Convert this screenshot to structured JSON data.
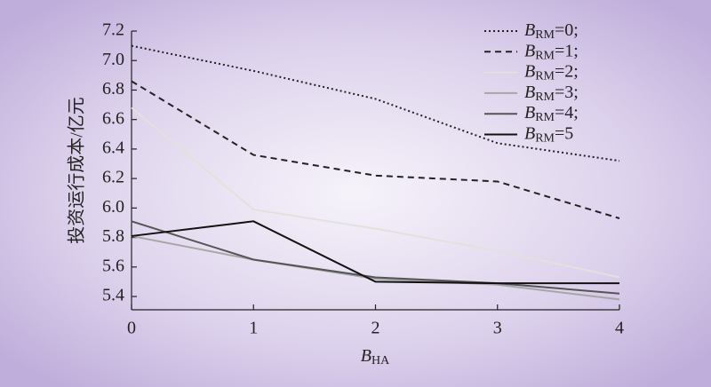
{
  "chart_data": {
    "type": "line",
    "x_label": "BHA",
    "y_label": "投资运行成本/亿元",
    "x": [
      0,
      1,
      2,
      3,
      4
    ],
    "xlim": [
      0,
      4
    ],
    "xticks": [
      0,
      1,
      2,
      3,
      4
    ],
    "ylim": [
      5.31,
      7.2
    ],
    "yticks": [
      5.4,
      5.6,
      5.8,
      {
        "value": 6,
        "label": "6.0"
      },
      6.2,
      6.4,
      6.6,
      6.8,
      {
        "value": 7,
        "label": "7.0"
      },
      7.2
    ],
    "legend": "upper right",
    "series": [
      {
        "name": "BRM=0;",
        "color": "#222222",
        "dash": "dotted",
        "values": [
          7.1,
          6.93,
          6.74,
          6.44,
          6.32
        ]
      },
      {
        "name": "BRM=1;",
        "color": "#222222",
        "dash": "dashed",
        "values": [
          6.86,
          6.36,
          6.22,
          6.18,
          5.93
        ]
      },
      {
        "name": "BRM=2;",
        "color": "#e4e1dc",
        "dash": "solid",
        "values": [
          6.68,
          5.99,
          5.86,
          5.71,
          5.53
        ]
      },
      {
        "name": "BRM=3;",
        "color": "#a6a6a6",
        "dash": "solid",
        "values": [
          5.81,
          5.65,
          5.52,
          5.48,
          5.38
        ]
      },
      {
        "name": "BRM=4;",
        "color": "#555555",
        "dash": "solid",
        "values": [
          5.91,
          5.65,
          5.53,
          5.49,
          5.42
        ]
      },
      {
        "name": "BRM=5",
        "color": "#111111",
        "dash": "solid",
        "values": [
          5.81,
          5.91,
          5.5,
          5.49,
          5.49
        ]
      }
    ]
  }
}
